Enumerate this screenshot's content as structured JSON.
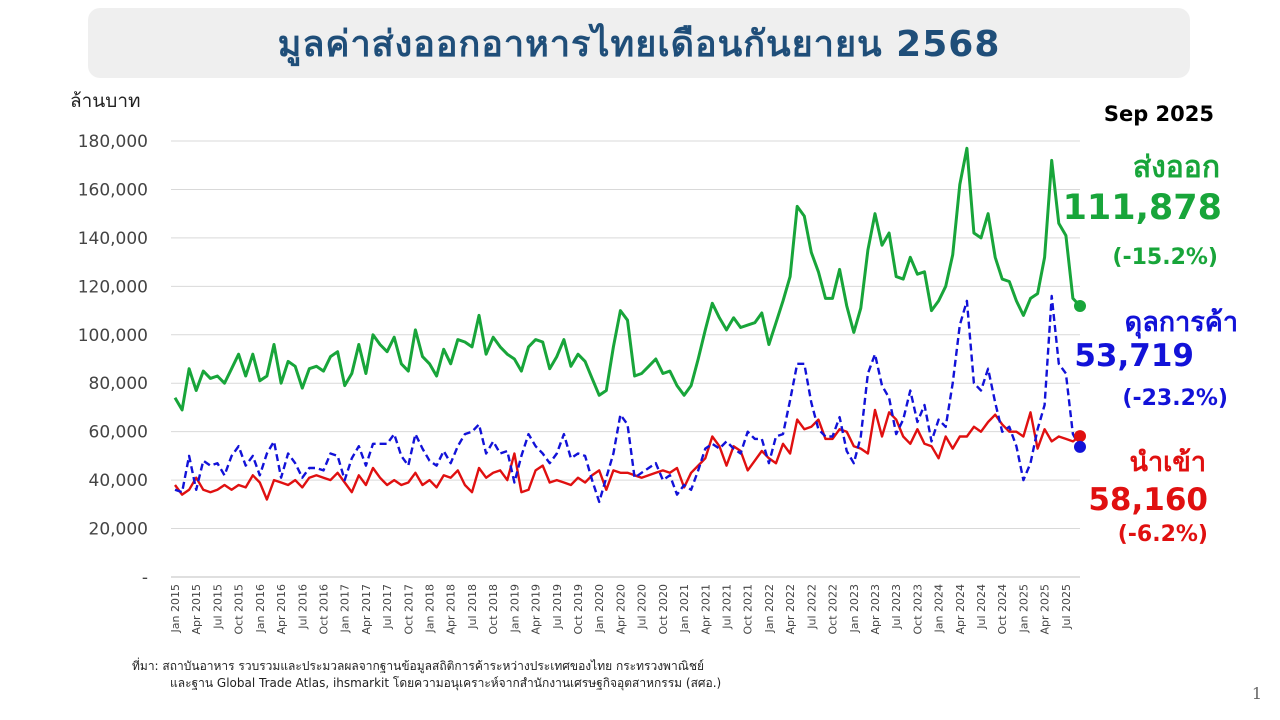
{
  "title": "มูลค่าส่งออกอาหารไทยเดือนกันยายน 2568",
  "y_unit": "ล้านบาท",
  "period_label": "Sep 2025",
  "callouts": {
    "exports": {
      "label": "ส่งออก",
      "value": "111,878",
      "change": "(-15.2%)"
    },
    "balance": {
      "label": "ดุลการค้า",
      "value": "53,719",
      "change": "(-23.2%)"
    },
    "imports": {
      "label": "นำเข้า",
      "value": "58,160",
      "change": "(-6.2%)"
    }
  },
  "source": {
    "line1": "ที่มา: สถาบันอาหาร รวบรวมและประมวลผลจากฐานข้อมูลสถิติการค้าระหว่างประเทศของไทย กระทรวงพาณิชย์",
    "line2": "และฐาน Global Trade Atlas, ihsmarkit โดยความอนุเคราะห์จากสำนักงานเศรษฐกิจอุตสาหกรรม (สศอ.)"
  },
  "page_number": "1",
  "colors": {
    "exports": "#18a53a",
    "imports": "#e01010",
    "balance": "#1212d8",
    "title": "#1f4e79",
    "grid": "#d9d9d9"
  },
  "chart_data": {
    "type": "line",
    "x_start": "Jan 2015",
    "x_end": "Sep 2025",
    "x_tick_labels": [
      "Jan 2015",
      "Apr 2015",
      "Jul 2015",
      "Oct 2015",
      "Jan 2016",
      "Apr 2016",
      "Jul 2016",
      "Oct 2016",
      "Jan 2017",
      "Apr 2017",
      "Jul 2017",
      "Oct 2017",
      "Jan 2018",
      "Apr 2018",
      "Jul 2018",
      "Oct 2018",
      "Jan 2019",
      "Apr 2019",
      "Jul 2019",
      "Oct 2019",
      "Jan 2020",
      "Apr 2020",
      "Jul 2020",
      "Oct 2020",
      "Jan 2021",
      "Apr 2021",
      "Jul 2021",
      "Oct 2021",
      "Jan 2022",
      "Apr 2022",
      "Jul 2022",
      "Oct 2022",
      "Jan 2023",
      "Apr 2023",
      "Jul 2023",
      "Oct 2023",
      "Jan 2024",
      "Apr 2024",
      "Jul 2024",
      "Oct 2024",
      "Jan 2025",
      "Apr 2025",
      "Jul 2025"
    ],
    "y_ticks": [
      "-",
      "20,000",
      "40,000",
      "60,000",
      "80,000",
      "100,000",
      "120,000",
      "140,000",
      "160,000",
      "180,000"
    ],
    "ylim": [
      0,
      180000
    ],
    "grid": true,
    "series": [
      {
        "name": "ส่งออก",
        "style": "solid",
        "values": [
          74000,
          69000,
          86000,
          77000,
          85000,
          82000,
          83000,
          80000,
          86000,
          92000,
          83000,
          92000,
          81000,
          83000,
          96000,
          80000,
          89000,
          87000,
          78000,
          86000,
          87000,
          85000,
          91000,
          93000,
          79000,
          84000,
          96000,
          84000,
          100000,
          96000,
          93000,
          99000,
          88000,
          85000,
          102000,
          91000,
          88000,
          83000,
          94000,
          88000,
          98000,
          97000,
          95000,
          108000,
          92000,
          99000,
          95000,
          92000,
          90000,
          85000,
          95000,
          98000,
          97000,
          86000,
          91000,
          98000,
          87000,
          92000,
          89000,
          82000,
          75000,
          77000,
          95000,
          110000,
          106000,
          83000,
          84000,
          87000,
          90000,
          84000,
          85000,
          79000,
          75000,
          79000,
          90000,
          102000,
          113000,
          107000,
          102000,
          107000,
          103000,
          104000,
          105000,
          109000,
          96000,
          105000,
          114000,
          124000,
          153000,
          149000,
          134000,
          126000,
          115000,
          115000,
          127000,
          112000,
          101000,
          111000,
          135000,
          150000,
          137000,
          142000,
          124000,
          123000,
          132000,
          125000,
          126000,
          110000,
          114000,
          120000,
          133000,
          162000,
          177000,
          142000,
          140000,
          150000,
          132000,
          123000,
          122000,
          114000,
          108000,
          115000,
          117000,
          132000,
          172000,
          146000,
          141000,
          115000,
          111878
        ]
      },
      {
        "name": "นำเข้า",
        "style": "solid",
        "values": [
          38000,
          34000,
          36000,
          41000,
          36000,
          35000,
          36000,
          38000,
          36000,
          38000,
          37000,
          42000,
          39000,
          32000,
          40000,
          39000,
          38000,
          40000,
          37000,
          41000,
          42000,
          41000,
          40000,
          43000,
          39000,
          35000,
          42000,
          38000,
          45000,
          41000,
          38000,
          40000,
          38000,
          39000,
          43000,
          38000,
          40000,
          37000,
          42000,
          41000,
          44000,
          38000,
          35000,
          45000,
          41000,
          43000,
          44000,
          40000,
          51000,
          35000,
          36000,
          44000,
          46000,
          39000,
          40000,
          39000,
          38000,
          41000,
          39000,
          42000,
          44000,
          36000,
          44000,
          43000,
          43000,
          42000,
          41000,
          42000,
          43000,
          44000,
          43000,
          45000,
          37000,
          43000,
          46000,
          49000,
          58000,
          54000,
          46000,
          54000,
          52000,
          44000,
          48000,
          52000,
          49000,
          47000,
          55000,
          51000,
          65000,
          61000,
          62000,
          65000,
          57000,
          57000,
          61000,
          60000,
          54000,
          53000,
          51000,
          69000,
          58000,
          68000,
          65000,
          58000,
          55000,
          61000,
          55000,
          54000,
          49000,
          58000,
          53000,
          58000,
          58000,
          62000,
          60000,
          64000,
          67000,
          63000,
          60000,
          60000,
          58000,
          68000,
          53000,
          61000,
          56000,
          58000,
          57000,
          56000,
          58160
        ]
      },
      {
        "name": "ดุลการค้า",
        "style": "dashed",
        "values": [
          36000,
          35000,
          50000,
          36000,
          48000,
          46000,
          47000,
          42000,
          50000,
          54000,
          46000,
          50000,
          42000,
          51000,
          56000,
          41000,
          51000,
          47000,
          41000,
          45000,
          45000,
          44000,
          51000,
          50000,
          40000,
          49000,
          54000,
          46000,
          55000,
          55000,
          55000,
          59000,
          50000,
          46000,
          59000,
          53000,
          48000,
          46000,
          52000,
          47000,
          54000,
          59000,
          60000,
          63000,
          51000,
          56000,
          51000,
          52000,
          39000,
          50000,
          59000,
          54000,
          51000,
          47000,
          51000,
          59000,
          49000,
          51000,
          50000,
          40000,
          31000,
          41000,
          51000,
          67000,
          63000,
          41000,
          43000,
          45000,
          47000,
          40000,
          42000,
          34000,
          38000,
          36000,
          44000,
          53000,
          55000,
          53000,
          56000,
          53000,
          51000,
          60000,
          57000,
          57000,
          47000,
          58000,
          59000,
          73000,
          88000,
          88000,
          72000,
          61000,
          58000,
          58000,
          66000,
          52000,
          47000,
          58000,
          84000,
          92000,
          79000,
          74000,
          59000,
          65000,
          77000,
          64000,
          71000,
          56000,
          65000,
          62000,
          80000,
          104000,
          114000,
          80000,
          77000,
          86000,
          72000,
          60000,
          62000,
          54000,
          40000,
          47000,
          61000,
          71000,
          116000,
          88000,
          84000,
          59000,
          53719
        ]
      }
    ]
  }
}
